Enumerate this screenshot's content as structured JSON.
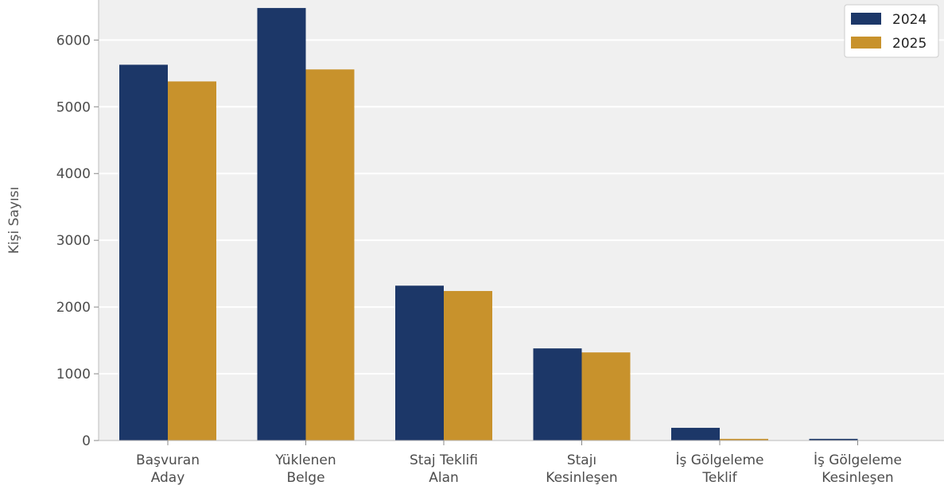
{
  "chart_data": {
    "type": "bar",
    "title": "",
    "xlabel": "",
    "ylabel": "Kişi Sayısı",
    "ylim": [
      0,
      6600
    ],
    "yticks": [
      0,
      1000,
      2000,
      3000,
      4000,
      5000,
      6000
    ],
    "grid": "horizontal",
    "legend_position": "top-right",
    "background": "#f0f0f0",
    "categories": [
      [
        "Başvuran",
        "Aday"
      ],
      [
        "Yüklenen",
        "Belge"
      ],
      [
        "Staj Teklifi",
        "Alan"
      ],
      [
        "Stajı",
        "Kesinleşen"
      ],
      [
        "İş Gölgeleme",
        "Teklif"
      ],
      [
        "İş Gölgeleme",
        "Kesinleşen"
      ]
    ],
    "series": [
      {
        "name": "2024",
        "color": "#1c3768",
        "values": [
          5630,
          6480,
          2320,
          1380,
          190,
          25
        ]
      },
      {
        "name": "2025",
        "color": "#c8922c",
        "values": [
          5380,
          5560,
          2240,
          1320,
          25,
          0
        ]
      }
    ]
  }
}
